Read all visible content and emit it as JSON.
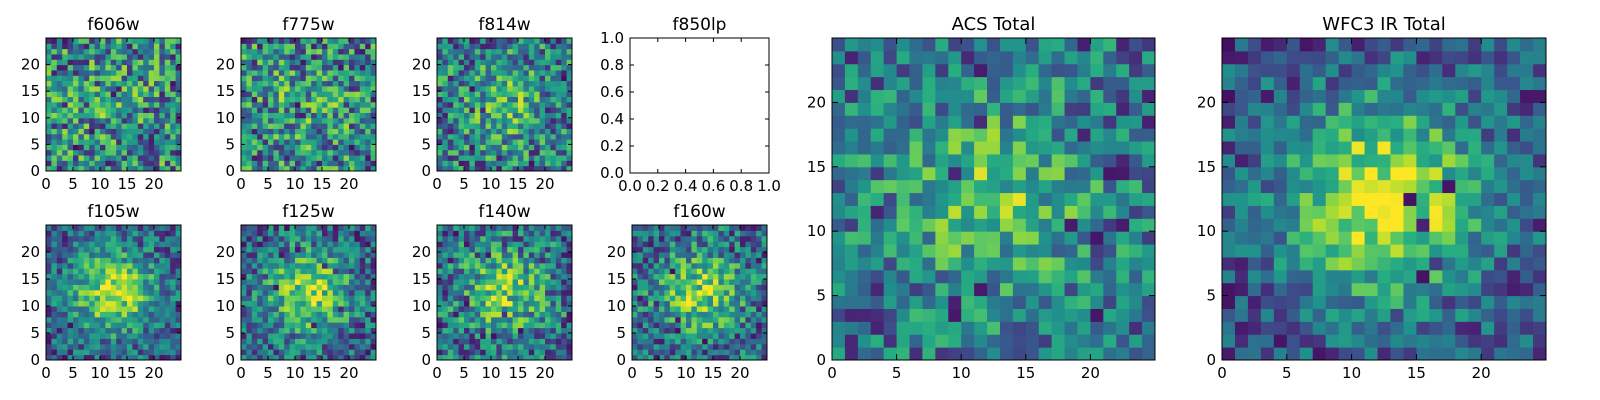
{
  "chart_data": [
    {
      "type": "heatmap",
      "title": "f606w",
      "grid_size": 25,
      "colormap": "viridis",
      "xticks": [
        "0",
        "5",
        "10",
        "15",
        "20"
      ],
      "yticks": [
        "0",
        "5",
        "10",
        "15",
        "20"
      ],
      "noise": 1.0,
      "central_peak": 0.1,
      "xlim": [
        0,
        25
      ],
      "ylim": [
        0,
        25
      ]
    },
    {
      "type": "heatmap",
      "title": "f775w",
      "grid_size": 25,
      "colormap": "viridis",
      "xticks": [
        "0",
        "5",
        "10",
        "15",
        "20"
      ],
      "yticks": [
        "0",
        "5",
        "10",
        "15",
        "20"
      ],
      "noise": 1.0,
      "central_peak": 0.15,
      "xlim": [
        0,
        25
      ],
      "ylim": [
        0,
        25
      ]
    },
    {
      "type": "heatmap",
      "title": "f814w",
      "grid_size": 25,
      "colormap": "viridis",
      "xticks": [
        "0",
        "5",
        "10",
        "15",
        "20"
      ],
      "yticks": [
        "0",
        "5",
        "10",
        "15",
        "20"
      ],
      "noise": 0.9,
      "central_peak": 0.25,
      "xlim": [
        0,
        25
      ],
      "ylim": [
        0,
        25
      ]
    },
    {
      "type": "empty",
      "title": "f850lp",
      "xticks": [
        "0.0",
        "0.2",
        "0.4",
        "0.6",
        "0.8",
        "1.0"
      ],
      "yticks": [
        "0.0",
        "0.2",
        "0.4",
        "0.6",
        "0.8",
        "1.0"
      ],
      "xlim": [
        0,
        1
      ],
      "ylim": [
        0,
        1
      ]
    },
    {
      "type": "heatmap",
      "title": "f105w",
      "grid_size": 25,
      "colormap": "viridis",
      "xticks": [
        "0",
        "5",
        "10",
        "15",
        "20"
      ],
      "yticks": [
        "0",
        "5",
        "10",
        "15",
        "20"
      ],
      "noise": 0.7,
      "central_peak": 0.55,
      "xlim": [
        0,
        25
      ],
      "ylim": [
        0,
        25
      ]
    },
    {
      "type": "heatmap",
      "title": "f125w",
      "grid_size": 25,
      "colormap": "viridis",
      "xticks": [
        "0",
        "5",
        "10",
        "15",
        "20"
      ],
      "yticks": [
        "0",
        "5",
        "10",
        "15",
        "20"
      ],
      "noise": 0.75,
      "central_peak": 0.5,
      "xlim": [
        0,
        25
      ],
      "ylim": [
        0,
        25
      ]
    },
    {
      "type": "heatmap",
      "title": "f140w",
      "grid_size": 25,
      "colormap": "viridis",
      "xticks": [
        "0",
        "5",
        "10",
        "15",
        "20"
      ],
      "yticks": [
        "0",
        "5",
        "10",
        "15",
        "20"
      ],
      "noise": 0.85,
      "central_peak": 0.4,
      "xlim": [
        0,
        25
      ],
      "ylim": [
        0,
        25
      ]
    },
    {
      "type": "heatmap",
      "title": "f160w",
      "grid_size": 25,
      "colormap": "viridis",
      "xticks": [
        "0",
        "5",
        "10",
        "15",
        "20"
      ],
      "yticks": [
        "0",
        "5",
        "10",
        "15",
        "20"
      ],
      "noise": 0.8,
      "central_peak": 0.45,
      "xlim": [
        0,
        25
      ],
      "ylim": [
        0,
        25
      ]
    },
    {
      "type": "heatmap",
      "title": "ACS Total",
      "grid_size": 25,
      "colormap": "viridis",
      "xticks": [
        "0",
        "5",
        "10",
        "15",
        "20"
      ],
      "yticks": [
        "0",
        "5",
        "10",
        "15",
        "20"
      ],
      "noise": 0.75,
      "central_peak": 0.35,
      "xlim": [
        0,
        25
      ],
      "ylim": [
        0,
        25
      ]
    },
    {
      "type": "heatmap",
      "title": "WFC3 IR Total",
      "grid_size": 25,
      "colormap": "viridis",
      "xticks": [
        "0",
        "5",
        "10",
        "15",
        "20"
      ],
      "yticks": [
        "0",
        "5",
        "10",
        "15",
        "20"
      ],
      "noise": 0.6,
      "central_peak": 0.7,
      "xlim": [
        0,
        25
      ],
      "ylim": [
        0,
        25
      ]
    }
  ]
}
